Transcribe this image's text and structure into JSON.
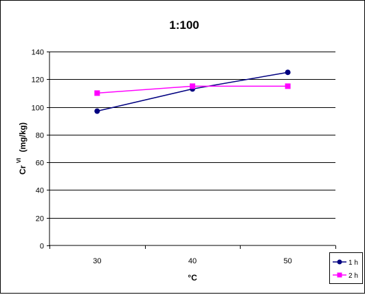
{
  "chart_data": {
    "type": "line",
    "title": "1:100",
    "xlabel": "°C",
    "ylabel": {
      "base": "Cr",
      "superscript": "VI",
      "unit": "(mg/kg)"
    },
    "categories": [
      "30",
      "40",
      "50"
    ],
    "ylim": [
      0,
      140
    ],
    "yticks": [
      0,
      20,
      40,
      60,
      80,
      100,
      120,
      140
    ],
    "grid": true,
    "legend_position": "bottom-right",
    "series": [
      {
        "name": "1 h",
        "values": [
          97,
          113,
          125
        ],
        "color": "#000080",
        "marker": "circle"
      },
      {
        "name": "2 h",
        "values": [
          110,
          115,
          115
        ],
        "color": "#ff00ff",
        "marker": "square"
      }
    ]
  }
}
